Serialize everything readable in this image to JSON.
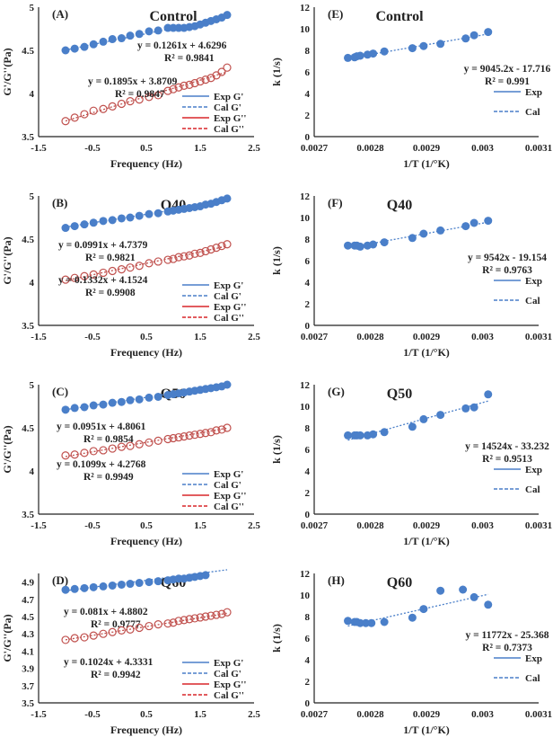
{
  "chart_data": [
    {
      "type": "scatter",
      "panel": "(A)",
      "title": "Control",
      "xlabel": "Frequency (Hz)",
      "ylabel": "G'/G''(Pa)",
      "xlim": [
        -1.5,
        2.5
      ],
      "ylim": [
        3.5,
        5
      ],
      "xticks": [
        "-1.5",
        "-0.5",
        "0.5",
        "1.5",
        "2.5"
      ],
      "yticks": [
        "3.5",
        "4",
        "4.5",
        "5"
      ],
      "x": [
        -1,
        -0.83,
        -0.65,
        -0.48,
        -0.3,
        -0.13,
        0.04,
        0.2,
        0.37,
        0.55,
        0.72,
        0.9,
        1,
        1.1,
        1.2,
        1.3,
        1.4,
        1.5,
        1.6,
        1.7,
        1.8,
        1.9,
        2
      ],
      "series": [
        {
          "name": "G'",
          "values": [
            4.5,
            4.52,
            4.54,
            4.57,
            4.6,
            4.63,
            4.64,
            4.67,
            4.69,
            4.72,
            4.73,
            4.76,
            4.76,
            4.76,
            4.76,
            4.77,
            4.78,
            4.8,
            4.82,
            4.84,
            4.86,
            4.88,
            4.91
          ],
          "equation": "y = 0.1261x + 4.6296",
          "r2": "R² = 0.9841",
          "slope": 0.1261,
          "intercept": 4.6296
        },
        {
          "name": "G''",
          "values": [
            3.68,
            3.72,
            3.76,
            3.8,
            3.82,
            3.85,
            3.88,
            3.91,
            3.93,
            3.96,
            3.98,
            4.03,
            4.05,
            4.07,
            4.09,
            4.1,
            4.12,
            4.14,
            4.16,
            4.18,
            4.21,
            4.25,
            4.3
          ],
          "equation": "y = 0.1895x + 3.8709",
          "r2": "R² = 0.9847",
          "slope": 0.1895,
          "intercept": 3.8709
        }
      ],
      "legend": [
        "Exp G'",
        "Cal G'",
        "Exp G''",
        "Cal G''"
      ]
    },
    {
      "type": "scatter",
      "panel": "(B)",
      "title": "Q40",
      "xlabel": "Frequency (Hz)",
      "ylabel": "G'/G''(Pa)",
      "xlim": [
        -1.5,
        2.5
      ],
      "ylim": [
        3.5,
        5
      ],
      "xticks": [
        "-1.5",
        "-0.5",
        "0.5",
        "1.5",
        "2.5"
      ],
      "yticks": [
        "3.5",
        "4",
        "4.5",
        "5"
      ],
      "x": [
        -1,
        -0.83,
        -0.65,
        -0.48,
        -0.3,
        -0.13,
        0.04,
        0.2,
        0.37,
        0.55,
        0.72,
        0.9,
        1,
        1.1,
        1.2,
        1.3,
        1.4,
        1.5,
        1.6,
        1.7,
        1.8,
        1.9,
        2
      ],
      "series": [
        {
          "name": "G'",
          "values": [
            4.63,
            4.65,
            4.67,
            4.69,
            4.71,
            4.72,
            4.74,
            4.75,
            4.77,
            4.79,
            4.8,
            4.82,
            4.83,
            4.84,
            4.85,
            4.86,
            4.87,
            4.88,
            4.9,
            4.91,
            4.93,
            4.95,
            4.97
          ],
          "equation": "y = 0.0991x + 4.7379",
          "r2": "R² = 0.9821",
          "slope": 0.0991,
          "intercept": 4.7379
        },
        {
          "name": "G''",
          "values": [
            4.03,
            4.05,
            4.07,
            4.09,
            4.11,
            4.13,
            4.15,
            4.17,
            4.19,
            4.22,
            4.24,
            4.26,
            4.27,
            4.29,
            4.3,
            4.31,
            4.33,
            4.34,
            4.36,
            4.38,
            4.4,
            4.42,
            4.44
          ],
          "equation": "y = 0.1332x + 4.1524",
          "r2": "R² = 0.9908",
          "slope": 0.1332,
          "intercept": 4.1524
        }
      ],
      "legend": [
        "Exp G'",
        "Cal G'",
        "Exp G''",
        "Cal G''"
      ]
    },
    {
      "type": "scatter",
      "panel": "(C)",
      "title": "Q50",
      "xlabel": "Frequency (Hz)",
      "ylabel": "G'/G''(Pa)",
      "xlim": [
        -1.5,
        2.5
      ],
      "ylim": [
        3.5,
        5
      ],
      "xticks": [
        "-1.5",
        "-0.5",
        "0.5",
        "1.5",
        "2.5"
      ],
      "yticks": [
        "3.5",
        "4",
        "4.5",
        "5"
      ],
      "x": [
        -1,
        -0.83,
        -0.65,
        -0.48,
        -0.3,
        -0.13,
        0.04,
        0.2,
        0.37,
        0.55,
        0.72,
        0.9,
        1,
        1.1,
        1.2,
        1.3,
        1.4,
        1.5,
        1.6,
        1.7,
        1.8,
        1.9,
        2
      ],
      "series": [
        {
          "name": "G'",
          "values": [
            4.71,
            4.73,
            4.74,
            4.76,
            4.77,
            4.79,
            4.8,
            4.82,
            4.83,
            4.85,
            4.86,
            4.88,
            4.89,
            4.9,
            4.91,
            4.92,
            4.93,
            4.94,
            4.95,
            4.96,
            4.97,
            4.98,
            5.0
          ],
          "equation": "y = 0.0951x + 4.8061",
          "r2": "R² = 0.9854",
          "slope": 0.0951,
          "intercept": 4.8061
        },
        {
          "name": "G''",
          "values": [
            4.18,
            4.19,
            4.21,
            4.23,
            4.24,
            4.26,
            4.28,
            4.29,
            4.31,
            4.33,
            4.35,
            4.37,
            4.38,
            4.39,
            4.4,
            4.41,
            4.42,
            4.43,
            4.44,
            4.45,
            4.47,
            4.48,
            4.5
          ],
          "equation": "y = 0.1099x + 4.2768",
          "r2": "R² = 0.9949",
          "slope": 0.1099,
          "intercept": 4.2768
        }
      ],
      "legend": [
        "Exp G'",
        "Cal G'",
        "Exp G''",
        "Cal G''"
      ]
    },
    {
      "type": "scatter",
      "panel": "(D)",
      "title": "Q60",
      "xlabel": "Frequency (Hz)",
      "ylabel": "G'/G''(Pa)",
      "xlim": [
        -1.5,
        2.5
      ],
      "ylim": [
        3.5,
        5.0
      ],
      "xticks": [
        "-1.5",
        "-0.5",
        "0.5",
        "1.5",
        "2.5"
      ],
      "yticks": [
        "3.5",
        "3.7",
        "3.9",
        "4.1",
        "4.3",
        "4.5",
        "4.7",
        "4.9"
      ],
      "x": [
        -1,
        -0.83,
        -0.65,
        -0.48,
        -0.3,
        -0.13,
        0.04,
        0.2,
        0.37,
        0.55,
        0.72,
        0.9,
        1,
        1.1,
        1.2,
        1.3,
        1.4,
        1.5,
        1.6,
        1.7,
        1.8,
        1.9,
        2
      ],
      "series": [
        {
          "name": "G'",
          "values": [
            4.81,
            4.82,
            4.83,
            4.84,
            4.85,
            4.86,
            4.87,
            4.88,
            4.89,
            4.9,
            4.91,
            4.92,
            4.93,
            4.94,
            4.94,
            4.95,
            4.96,
            4.97,
            4.98,
            null,
            null,
            null,
            null
          ],
          "equation": "y = 0.081x + 4.8802",
          "r2": "R² = 0.9777",
          "slope": 0.081,
          "intercept": 4.8802
        },
        {
          "name": "G''",
          "values": [
            4.23,
            4.25,
            4.26,
            4.28,
            4.3,
            4.32,
            4.34,
            4.35,
            4.37,
            4.39,
            4.41,
            4.42,
            4.43,
            4.45,
            4.46,
            4.47,
            4.48,
            4.49,
            4.5,
            4.51,
            4.52,
            4.53,
            4.55
          ],
          "equation": "y = 0.1024x + 4.3331",
          "r2": "R² = 0.9942",
          "slope": 0.1024,
          "intercept": 4.3331
        }
      ],
      "legend": [
        "Exp G'",
        "Cal G'",
        "Exp G''",
        "Cal G''"
      ]
    },
    {
      "type": "scatter",
      "panel": "(E)",
      "title": "Control",
      "xlabel": "1/T (1/°K)",
      "ylabel": "k (1/s)",
      "xlim": [
        0.0027,
        0.0031
      ],
      "ylim": [
        0,
        12
      ],
      "xticks": [
        "0.0027",
        "0.0028",
        "0.0029",
        "0.003",
        "0.0031"
      ],
      "yticks": [
        "0",
        "2",
        "4",
        "6",
        "8",
        "10",
        "12"
      ],
      "x": [
        0.00276,
        0.002772,
        0.002776,
        0.002782,
        0.002795,
        0.002805,
        0.002825,
        0.002875,
        0.002895,
        0.002925,
        0.00297,
        0.002985,
        0.00301
      ],
      "series": [
        {
          "name": "k",
          "values": [
            7.3,
            7.35,
            7.45,
            7.5,
            7.6,
            7.7,
            7.9,
            8.2,
            8.4,
            8.6,
            9.1,
            9.4,
            9.7
          ],
          "equation": "y = 9045.2x - 17.716",
          "r2": "R² = 0.991",
          "slope": 9045.2,
          "intercept": -17.716
        }
      ],
      "legend": [
        "Exp",
        "Cal"
      ]
    },
    {
      "type": "scatter",
      "panel": "(F)",
      "title": "Q40",
      "xlabel": "1/T (1/°K)",
      "ylabel": "k (1/s)",
      "xlim": [
        0.0027,
        0.0031
      ],
      "ylim": [
        0,
        12
      ],
      "xticks": [
        "0.0027",
        "0.0028",
        "0.0029",
        "0.003",
        "0.0031"
      ],
      "yticks": [
        "0",
        "2",
        "4",
        "6",
        "8",
        "10",
        "12"
      ],
      "x": [
        0.00276,
        0.002772,
        0.002776,
        0.002782,
        0.002795,
        0.002805,
        0.002825,
        0.002875,
        0.002895,
        0.002925,
        0.00297,
        0.002985,
        0.00301
      ],
      "series": [
        {
          "name": "k",
          "values": [
            7.4,
            7.4,
            7.4,
            7.3,
            7.4,
            7.5,
            7.7,
            8.1,
            8.5,
            8.8,
            9.2,
            9.5,
            9.7
          ],
          "equation": "y = 9542x - 19.154",
          "r2": "R² = 0.9763",
          "slope": 9542,
          "intercept": -19.154
        }
      ],
      "legend": [
        "Exp",
        "Cal"
      ]
    },
    {
      "type": "scatter",
      "panel": "(G)",
      "title": "Q50",
      "xlabel": "1/T (1/°K)",
      "ylabel": "k (1/s)",
      "xlim": [
        0.0027,
        0.0031
      ],
      "ylim": [
        0,
        12
      ],
      "xticks": [
        "0.0027",
        "0.0028",
        "0.0029",
        "0.003",
        "0.0031"
      ],
      "yticks": [
        "0",
        "2",
        "4",
        "6",
        "8",
        "10",
        "12"
      ],
      "x": [
        0.00276,
        0.002772,
        0.002776,
        0.002782,
        0.002795,
        0.002805,
        0.002825,
        0.002875,
        0.002895,
        0.002925,
        0.00297,
        0.002985,
        0.00301
      ],
      "series": [
        {
          "name": "k",
          "values": [
            7.3,
            7.3,
            7.3,
            7.3,
            7.3,
            7.4,
            7.6,
            8.1,
            8.8,
            9.2,
            9.8,
            9.9,
            11.1
          ],
          "equation": "y = 14524x - 33.232",
          "r2": "R² = 0.9513",
          "slope": 14524,
          "intercept": -33.232
        }
      ],
      "legend": [
        "Exp",
        "Cal"
      ]
    },
    {
      "type": "scatter",
      "panel": "(H)",
      "title": "Q60",
      "xlabel": "1/T (1/°K)",
      "ylabel": "k (1/s)",
      "xlim": [
        0.0027,
        0.0031
      ],
      "ylim": [
        0,
        12
      ],
      "xticks": [
        "0.0027",
        "0.0028",
        "0.0029",
        "0.003",
        "0.0031"
      ],
      "yticks": [
        "0",
        "2",
        "4",
        "6",
        "8",
        "10",
        "12"
      ],
      "x": [
        0.00276,
        0.002772,
        0.002776,
        0.002782,
        0.002792,
        0.002802,
        0.002825,
        0.002875,
        0.002895,
        0.002925,
        0.002965,
        0.002985,
        0.00301
      ],
      "series": [
        {
          "name": "k",
          "values": [
            7.6,
            7.5,
            7.5,
            7.4,
            7.4,
            7.4,
            7.5,
            7.9,
            8.7,
            10.4,
            10.5,
            9.8,
            9.1
          ],
          "equation": "y = 11772x - 25.368",
          "r2": "R² = 0.7373",
          "slope": 11772,
          "intercept": -25.368
        }
      ],
      "legend": [
        "Exp",
        "Cal"
      ]
    }
  ],
  "colors": {
    "blue": "#4a7fc9",
    "red": "#c0504d",
    "line_red": "#d9262a",
    "axis": "#222222"
  }
}
